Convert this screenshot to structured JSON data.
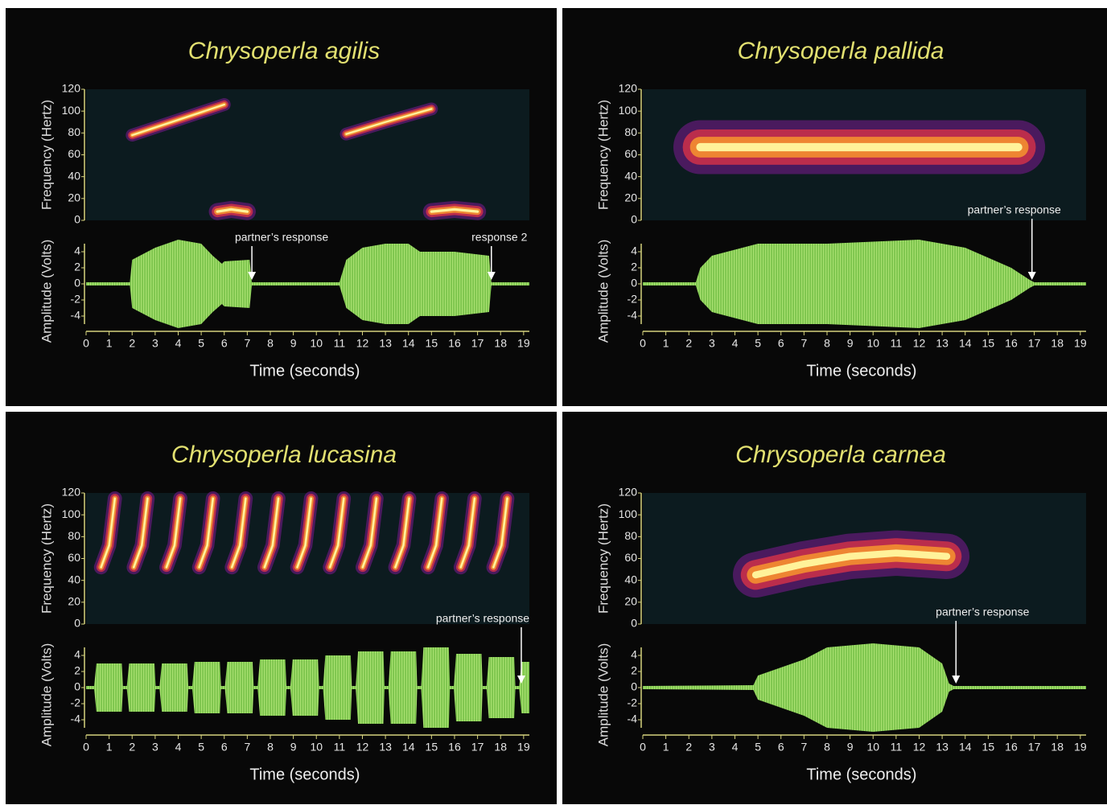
{
  "chart_data": [
    {
      "type": "spectrogram",
      "title": "Chrysoperla agilis",
      "xlabel": "Time (seconds)",
      "xlim": [
        0,
        19.25
      ],
      "xticks": [
        0,
        1,
        2,
        3,
        4,
        5,
        6,
        7,
        8,
        9,
        10,
        11,
        12,
        13,
        14,
        15,
        16,
        17,
        18,
        19
      ],
      "frequency": {
        "label": "Frequency (Hertz)",
        "ylim": [
          0,
          120
        ],
        "yticks": [
          0,
          20,
          40,
          60,
          80,
          100,
          120
        ],
        "traces": [
          {
            "x": [
              2,
              4,
              6
            ],
            "y": [
              78,
              92,
              106
            ],
            "spread": 9
          },
          {
            "x": [
              11.3,
              13,
              15
            ],
            "y": [
              79,
              90,
              102
            ],
            "spread": 9
          },
          {
            "x": [
              5.7,
              6.3,
              7
            ],
            "y": [
              8,
              10,
              8
            ],
            "spread": 12
          },
          {
            "x": [
              15,
              16,
              17
            ],
            "y": [
              8,
              10,
              8
            ],
            "spread": 12
          }
        ]
      },
      "amplitude": {
        "label": "Amplitude (Volts)",
        "ylim": [
          -5,
          5
        ],
        "yticks": [
          -4,
          -2,
          0,
          2,
          4
        ],
        "x": [
          0,
          1.9,
          2.0,
          3,
          4,
          5,
          5.5,
          5.9,
          6,
          7.1,
          7.2,
          11,
          11.3,
          12,
          13,
          14,
          14.5,
          15,
          15.5,
          16,
          17.5,
          17.6,
          19.25
        ],
        "values": [
          0.2,
          0.2,
          3,
          4.5,
          5.5,
          5,
          3.5,
          2.5,
          2.8,
          3,
          0.2,
          0.2,
          3,
          4.5,
          5,
          5,
          4,
          4,
          4,
          4,
          3.5,
          0.2,
          0.2
        ]
      },
      "annotations": [
        {
          "text": "partner’s response",
          "x": 7.2
        },
        {
          "text": "response 2",
          "x": 17.6
        }
      ]
    },
    {
      "type": "spectrogram",
      "title": "Chrysoperla pallida",
      "xlabel": "Time (seconds)",
      "xlim": [
        0,
        19.25
      ],
      "xticks": [
        0,
        1,
        2,
        3,
        4,
        5,
        6,
        7,
        8,
        9,
        10,
        11,
        12,
        13,
        14,
        15,
        16,
        17,
        18,
        19
      ],
      "frequency": {
        "label": "Frequency (Hertz)",
        "ylim": [
          0,
          120
        ],
        "yticks": [
          0,
          20,
          40,
          60,
          80,
          100,
          120
        ],
        "traces": [
          {
            "x": [
              2.5,
              9,
              16.3
            ],
            "y": [
              67,
              67,
              67
            ],
            "spread": 38
          }
        ]
      },
      "amplitude": {
        "label": "Amplitude (Volts)",
        "ylim": [
          -5,
          5
        ],
        "yticks": [
          -4,
          -2,
          0,
          2,
          4
        ],
        "x": [
          0,
          2.3,
          2.5,
          3,
          5,
          8,
          12,
          14,
          16,
          16.8,
          17,
          19.25
        ],
        "values": [
          0.2,
          0.2,
          2,
          3.5,
          5,
          5,
          5.5,
          4.5,
          2,
          0.5,
          0.2,
          0.2
        ]
      },
      "annotations": [
        {
          "text": "partner’s response",
          "x": 16.9
        }
      ]
    },
    {
      "type": "spectrogram",
      "title": "Chrysoperla lucasina",
      "xlabel": "Time (seconds)",
      "xlim": [
        0,
        19.25
      ],
      "xticks": [
        0,
        1,
        2,
        3,
        4,
        5,
        6,
        7,
        8,
        9,
        10,
        11,
        12,
        13,
        14,
        15,
        16,
        17,
        18,
        19
      ],
      "frequency": {
        "label": "Frequency (Hertz)",
        "ylim": [
          0,
          120
        ],
        "yticks": [
          0,
          20,
          40,
          60,
          80,
          100,
          120
        ],
        "traces": [
          {
            "x": [
              0.65,
              1.0,
              1.25
            ],
            "y": [
              52,
              72,
              115
            ],
            "spread": 10
          },
          {
            "x": [
              2.07,
              2.42,
              2.67
            ],
            "y": [
              52,
              72,
              115
            ],
            "spread": 10
          },
          {
            "x": [
              3.49,
              3.84,
              4.09
            ],
            "y": [
              52,
              72,
              115
            ],
            "spread": 10
          },
          {
            "x": [
              4.91,
              5.26,
              5.51
            ],
            "y": [
              52,
              72,
              115
            ],
            "spread": 10
          },
          {
            "x": [
              6.33,
              6.68,
              6.93
            ],
            "y": [
              52,
              72,
              115
            ],
            "spread": 10
          },
          {
            "x": [
              7.75,
              8.1,
              8.35
            ],
            "y": [
              52,
              72,
              115
            ],
            "spread": 10
          },
          {
            "x": [
              9.17,
              9.52,
              9.77
            ],
            "y": [
              52,
              72,
              115
            ],
            "spread": 10
          },
          {
            "x": [
              10.59,
              10.94,
              11.19
            ],
            "y": [
              52,
              72,
              115
            ],
            "spread": 10
          },
          {
            "x": [
              12.01,
              12.36,
              12.61
            ],
            "y": [
              52,
              72,
              115
            ],
            "spread": 10
          },
          {
            "x": [
              13.43,
              13.78,
              14.03
            ],
            "y": [
              52,
              72,
              115
            ],
            "spread": 10
          },
          {
            "x": [
              14.85,
              15.2,
              15.45
            ],
            "y": [
              52,
              72,
              115
            ],
            "spread": 10
          },
          {
            "x": [
              16.27,
              16.62,
              16.87
            ],
            "y": [
              52,
              72,
              115
            ],
            "spread": 10
          },
          {
            "x": [
              17.69,
              18.04,
              18.29
            ],
            "y": [
              52,
              72,
              115
            ],
            "spread": 10
          }
        ]
      },
      "amplitude": {
        "label": "Amplitude (Volts)",
        "ylim": [
          -5,
          5
        ],
        "yticks": [
          -4,
          -2,
          0,
          2,
          4
        ],
        "x": [
          0,
          0.35,
          0.45,
          1.55,
          1.6,
          1.77,
          1.87,
          2.97,
          3.02,
          3.19,
          3.29,
          4.39,
          4.44,
          4.61,
          4.71,
          5.81,
          5.86,
          6.03,
          6.13,
          7.23,
          7.28,
          7.45,
          7.55,
          8.65,
          8.7,
          8.87,
          8.97,
          10.07,
          10.12,
          10.29,
          10.39,
          11.49,
          11.54,
          11.71,
          11.81,
          12.91,
          12.96,
          13.13,
          13.23,
          14.33,
          14.38,
          14.55,
          14.65,
          15.75,
          15.8,
          15.97,
          16.07,
          17.17,
          17.22,
          17.39,
          17.49,
          18.59,
          18.64,
          18.81,
          18.91,
          19.25
        ],
        "values": [
          0.2,
          0.2,
          3,
          3,
          0.2,
          0.2,
          3,
          3,
          0.2,
          0.2,
          3,
          3,
          0.2,
          0.2,
          3.2,
          3.2,
          0.2,
          0.2,
          3.2,
          3.2,
          0.2,
          0.2,
          3.5,
          3.5,
          0.2,
          0.2,
          3.5,
          3.5,
          0.2,
          0.2,
          4,
          4,
          0.2,
          0.2,
          4.5,
          4.5,
          0.2,
          0.2,
          4.5,
          4.5,
          0.2,
          0.2,
          5,
          5,
          0.2,
          0.2,
          4.2,
          4.2,
          0.2,
          0.2,
          3.8,
          3.8,
          0.2,
          0.2,
          3.2,
          3.2
        ]
      },
      "annotations": [
        {
          "text": "partner’s response",
          "x": 18.9
        }
      ]
    },
    {
      "type": "spectrogram",
      "title": "Chrysoperla carnea",
      "xlabel": "Time (seconds)",
      "xlim": [
        0,
        19.25
      ],
      "xticks": [
        0,
        1,
        2,
        3,
        4,
        5,
        6,
        7,
        8,
        9,
        10,
        11,
        12,
        13,
        14,
        15,
        16,
        17,
        18,
        19
      ],
      "frequency": {
        "label": "Frequency (Hertz)",
        "ylim": [
          0,
          120
        ],
        "yticks": [
          0,
          20,
          40,
          60,
          80,
          100,
          120
        ],
        "traces": [
          {
            "x": [
              4.9,
              7,
              9,
              11,
              13.2
            ],
            "y": [
              45,
              55,
              62,
              65,
              62
            ],
            "spread": 32
          }
        ]
      },
      "amplitude": {
        "label": "Amplitude (Volts)",
        "ylim": [
          -5,
          5
        ],
        "yticks": [
          -4,
          -2,
          0,
          2,
          4
        ],
        "x": [
          0,
          4.8,
          5,
          6,
          7,
          8,
          10,
          12,
          13,
          13.3,
          13.5,
          19.25
        ],
        "values": [
          0.2,
          0.3,
          1.5,
          2.5,
          3.5,
          5,
          5.5,
          5,
          3,
          0.5,
          0.2,
          0.2
        ]
      },
      "annotations": [
        {
          "text": "partner’s response",
          "x": 13.6
        }
      ]
    }
  ]
}
